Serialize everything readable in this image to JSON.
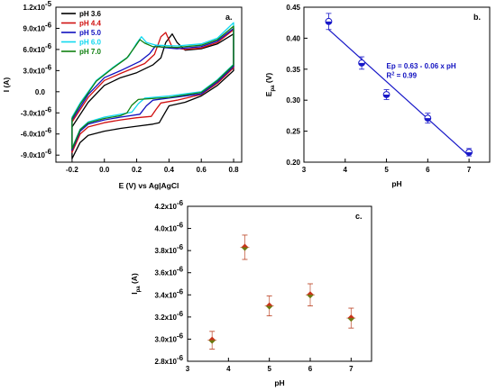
{
  "chart_data": [
    {
      "id": "a",
      "type": "line",
      "panel_label": "a.",
      "xlabel": "E (V) vs Ag|AgCl",
      "ylabel": "I (A)",
      "xlim": [
        -0.3,
        0.85
      ],
      "ylim": [
        -1e-05,
        1.2e-05
      ],
      "xticks": [
        -0.2,
        0.0,
        0.2,
        0.4,
        0.6,
        0.8
      ],
      "xtick_labels": [
        "-0.2",
        "0.0",
        "0.2",
        "0.4",
        "0.6",
        "0.8"
      ],
      "yticks": [
        -9e-06,
        -6e-06,
        -3e-06,
        0,
        3e-06,
        6e-06,
        9e-06,
        1.2e-05
      ],
      "ytick_labels": [
        "-9.0x10",
        "-6.0x10",
        "-3.0x10",
        "0.0",
        "3.0x10",
        "6.0x10",
        "9.0x10",
        "1.2x10"
      ],
      "ytick_exps": [
        "-6",
        "-6",
        "-6",
        "",
        "-6",
        "-6",
        "-6",
        "-5"
      ],
      "legend_position": "top-left",
      "series": [
        {
          "name": "pH 3.6",
          "color": "#000000",
          "forward": [
            [
              -0.2,
              -9.5e-06
            ],
            [
              -0.15,
              -7.2e-06
            ],
            [
              -0.1,
              -6.2e-06
            ],
            [
              0.0,
              -5.6e-06
            ],
            [
              0.1,
              -5.2e-06
            ],
            [
              0.2,
              -4.9e-06
            ],
            [
              0.3,
              -4.6e-06
            ],
            [
              0.34,
              -4.4e-06
            ],
            [
              0.37,
              -3.2e-06
            ],
            [
              0.4,
              -2e-06
            ],
            [
              0.5,
              -1.5e-06
            ],
            [
              0.6,
              -6e-07
            ],
            [
              0.7,
              9e-07
            ],
            [
              0.8,
              3e-06
            ]
          ],
          "reverse": [
            [
              0.8,
              8.2e-06
            ],
            [
              0.7,
              6.8e-06
            ],
            [
              0.6,
              6.1e-06
            ],
            [
              0.5,
              5.9e-06
            ],
            [
              0.45,
              7e-06
            ],
            [
              0.42,
              8.2e-06
            ],
            [
              0.38,
              7e-06
            ],
            [
              0.35,
              4.8e-06
            ],
            [
              0.3,
              3.8e-06
            ],
            [
              0.2,
              2.7e-06
            ],
            [
              0.1,
              2e-06
            ],
            [
              0.0,
              9e-07
            ],
            [
              -0.1,
              -1.5e-06
            ],
            [
              -0.2,
              -5e-06
            ]
          ]
        },
        {
          "name": "pH 4.4",
          "color": "#d01010",
          "forward": [
            [
              -0.2,
              -8.6e-06
            ],
            [
              -0.15,
              -6e-06
            ],
            [
              -0.1,
              -5e-06
            ],
            [
              0.0,
              -4.4e-06
            ],
            [
              0.1,
              -4e-06
            ],
            [
              0.2,
              -3.7e-06
            ],
            [
              0.29,
              -3.5e-06
            ],
            [
              0.32,
              -2.5e-06
            ],
            [
              0.35,
              -1.6e-06
            ],
            [
              0.45,
              -1.2e-06
            ],
            [
              0.6,
              -4e-07
            ],
            [
              0.7,
              1.2e-06
            ],
            [
              0.8,
              3.4e-06
            ]
          ],
          "reverse": [
            [
              0.8,
              8.8e-06
            ],
            [
              0.7,
              7e-06
            ],
            [
              0.6,
              6.2e-06
            ],
            [
              0.5,
              6e-06
            ],
            [
              0.42,
              6.3e-06
            ],
            [
              0.38,
              8.4e-06
            ],
            [
              0.35,
              7.8e-06
            ],
            [
              0.31,
              5.3e-06
            ],
            [
              0.25,
              4e-06
            ],
            [
              0.1,
              2.6e-06
            ],
            [
              0.0,
              1.6e-06
            ],
            [
              -0.1,
              -8e-07
            ],
            [
              -0.2,
              -4.3e-06
            ]
          ]
        },
        {
          "name": "pH 5.0",
          "color": "#1010c0",
          "forward": [
            [
              -0.2,
              -8.3e-06
            ],
            [
              -0.15,
              -5.6e-06
            ],
            [
              -0.1,
              -4.6e-06
            ],
            [
              0.0,
              -4e-06
            ],
            [
              0.1,
              -3.6e-06
            ],
            [
              0.22,
              -3.2e-06
            ],
            [
              0.26,
              -2e-06
            ],
            [
              0.3,
              -1.2e-06
            ],
            [
              0.4,
              -9e-07
            ],
            [
              0.6,
              -3e-07
            ],
            [
              0.7,
              1.4e-06
            ],
            [
              0.8,
              3.6e-06
            ]
          ],
          "reverse": [
            [
              0.8,
              9e-06
            ],
            [
              0.7,
              7.2e-06
            ],
            [
              0.6,
              6.4e-06
            ],
            [
              0.45,
              6.1e-06
            ],
            [
              0.36,
              6.3e-06
            ],
            [
              0.32,
              6.6e-06
            ],
            [
              0.28,
              5.4e-06
            ],
            [
              0.22,
              4.3e-06
            ],
            [
              0.1,
              3e-06
            ],
            [
              0.0,
              2e-06
            ],
            [
              -0.1,
              -4e-07
            ],
            [
              -0.2,
              -4e-06
            ]
          ]
        },
        {
          "name": "pH 6.0",
          "color": "#10d8f0",
          "forward": [
            [
              -0.2,
              -8e-06
            ],
            [
              -0.15,
              -5.3e-06
            ],
            [
              -0.1,
              -4.3e-06
            ],
            [
              0.0,
              -3.6e-06
            ],
            [
              0.1,
              -3.2e-06
            ],
            [
              0.17,
              -2.9e-06
            ],
            [
              0.21,
              -1.7e-06
            ],
            [
              0.25,
              -9e-07
            ],
            [
              0.4,
              -6e-07
            ],
            [
              0.6,
              0.0
            ],
            [
              0.7,
              1.7e-06
            ],
            [
              0.8,
              3.9e-06
            ]
          ],
          "reverse": [
            [
              0.8,
              9.8e-06
            ],
            [
              0.7,
              7.6e-06
            ],
            [
              0.6,
              6.8e-06
            ],
            [
              0.45,
              6.5e-06
            ],
            [
              0.32,
              6.6e-06
            ],
            [
              0.26,
              7e-06
            ],
            [
              0.23,
              7.8e-06
            ],
            [
              0.2,
              6.9e-06
            ],
            [
              0.15,
              5e-06
            ],
            [
              0.05,
              3.4e-06
            ],
            [
              -0.05,
              1.6e-06
            ],
            [
              -0.15,
              -1.6e-06
            ],
            [
              -0.2,
              -3.6e-06
            ]
          ]
        },
        {
          "name": "pH 7.0",
          "color": "#108010",
          "forward": [
            [
              -0.2,
              -8.1e-06
            ],
            [
              -0.15,
              -5.4e-06
            ],
            [
              -0.1,
              -4.4e-06
            ],
            [
              0.0,
              -3.8e-06
            ],
            [
              0.1,
              -3.4e-06
            ],
            [
              0.14,
              -3e-06
            ],
            [
              0.17,
              -1.9e-06
            ],
            [
              0.21,
              -1.1e-06
            ],
            [
              0.4,
              -8e-07
            ],
            [
              0.6,
              -1e-07
            ],
            [
              0.7,
              1.6e-06
            ],
            [
              0.8,
              3.8e-06
            ]
          ],
          "reverse": [
            [
              0.8,
              9.3e-06
            ],
            [
              0.7,
              7.4e-06
            ],
            [
              0.6,
              6.6e-06
            ],
            [
              0.45,
              6.3e-06
            ],
            [
              0.3,
              6.4e-06
            ],
            [
              0.25,
              6.9e-06
            ],
            [
              0.22,
              7.4e-06
            ],
            [
              0.19,
              6.4e-06
            ],
            [
              0.14,
              4.8e-06
            ],
            [
              0.05,
              3.3e-06
            ],
            [
              -0.05,
              1.5e-06
            ],
            [
              -0.15,
              -1.8e-06
            ],
            [
              -0.2,
              -3.8e-06
            ]
          ]
        }
      ]
    },
    {
      "id": "b",
      "type": "scatter",
      "panel_label": "b.",
      "xlabel": "pH",
      "ylabel_main": "E",
      "ylabel_sub": "pa",
      "ylabel_unit": " (V)",
      "xlim": [
        3,
        7.5
      ],
      "ylim": [
        0.2,
        0.45
      ],
      "xticks": [
        3,
        4,
        5,
        6,
        7
      ],
      "xtick_labels": [
        "3",
        "4",
        "5",
        "6",
        "7"
      ],
      "yticks": [
        0.2,
        0.25,
        0.3,
        0.35,
        0.4,
        0.45
      ],
      "ytick_labels": [
        "0.20",
        "0.25",
        "0.30",
        "0.35",
        "0.40",
        "0.45"
      ],
      "points": [
        {
          "x": 3.6,
          "y": 0.427,
          "err": 0.013
        },
        {
          "x": 4.4,
          "y": 0.36,
          "err": 0.01
        },
        {
          "x": 5.0,
          "y": 0.309,
          "err": 0.008
        },
        {
          "x": 6.0,
          "y": 0.271,
          "err": 0.008
        },
        {
          "x": 7.0,
          "y": 0.216,
          "err": 0.006
        }
      ],
      "fit": {
        "slope": -0.06,
        "intercept": 0.63,
        "x_from": 3.6,
        "x_to": 7.0
      },
      "equation": "Ep = 0.63 - 0.06 x pH",
      "r2_label": "R",
      "r2_sup": "2",
      "r2_value": " = 0.99",
      "point_color": "#1818c8",
      "line_color": "#1818c8"
    },
    {
      "id": "c",
      "type": "scatter",
      "panel_label": "c.",
      "xlabel": "pH",
      "ylabel_main": "I",
      "ylabel_sub": "pa",
      "ylabel_unit": " (A)",
      "xlim": [
        3,
        7.5
      ],
      "ylim": [
        2.8e-06,
        4.2e-06
      ],
      "xticks": [
        3,
        4,
        5,
        6,
        7
      ],
      "xtick_labels": [
        "3",
        "4",
        "5",
        "6",
        "7"
      ],
      "yticks": [
        2.8e-06,
        3e-06,
        3.2e-06,
        3.4e-06,
        3.6e-06,
        3.8e-06,
        4e-06,
        4.2e-06
      ],
      "ytick_labels": [
        "2.8x10",
        "3.0x10",
        "3.2x10",
        "3.4x10",
        "3.6x10",
        "3.8x10",
        "4.0x10",
        "4.2x10"
      ],
      "ytick_exps": [
        "-6",
        "-6",
        "-6",
        "-6",
        "-6",
        "-6",
        "-6",
        "-6"
      ],
      "points": [
        {
          "x": 3.6,
          "y": 2.99e-06,
          "err": 8e-08
        },
        {
          "x": 4.4,
          "y": 3.83e-06,
          "err": 1.1e-07
        },
        {
          "x": 5.0,
          "y": 3.3e-06,
          "err": 9e-08
        },
        {
          "x": 6.0,
          "y": 3.4e-06,
          "err": 1e-07
        },
        {
          "x": 7.0,
          "y": 3.19e-06,
          "err": 9e-08
        }
      ],
      "point_color": "#b83a1a",
      "point_fill_top": "#c8341a",
      "point_fill_bottom": "#6a7a10"
    }
  ]
}
